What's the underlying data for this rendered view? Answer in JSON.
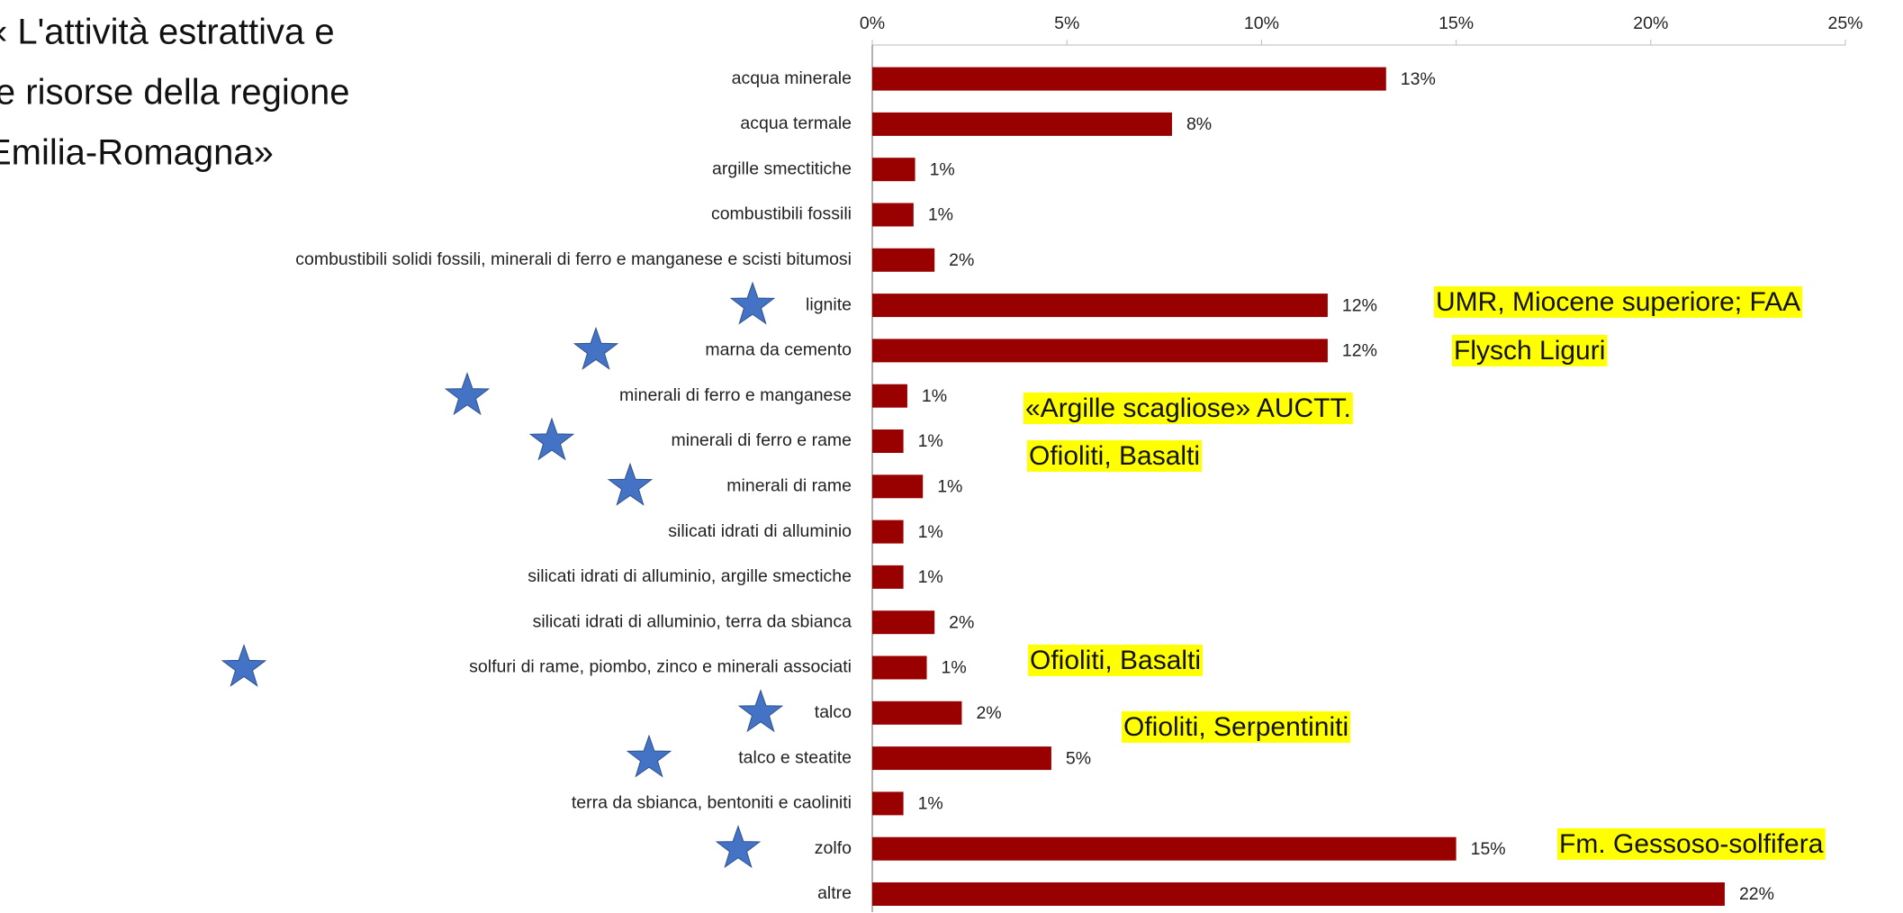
{
  "chart_data": {
    "type": "bar",
    "orientation": "horizontal",
    "title": [
      "« L'attività estrattiva e",
      "le risorse della regione",
      "Emilia-Romagna»"
    ],
    "categories": [
      "acqua minerale",
      "acqua termale",
      "argille smectitiche",
      "combustibili fossili",
      "combustibili solidi fossili, minerali di ferro e manganese e scisti bitumosi",
      "lignite",
      "marna da cemento",
      "minerali di ferro e manganese",
      "minerali di ferro e rame",
      "minerali di rame",
      "silicati idrati di alluminio",
      "silicati idrati di alluminio, argille smectiche",
      "silicati idrati di alluminio, terra da sbianca",
      "solfuri di rame, piombo, zinco e minerali associati",
      "talco",
      "talco e steatite",
      "terra da sbianca, bentoniti e caoliniti",
      "zolfo",
      "altre"
    ],
    "values": [
      13.2,
      7.7,
      1.1,
      1.06,
      1.6,
      11.7,
      11.7,
      0.9,
      0.8,
      1.3,
      0.8,
      0.8,
      1.6,
      1.4,
      2.3,
      4.6,
      0.8,
      15.0,
      21.9
    ],
    "value_labels": [
      "13%",
      "8%",
      "1%",
      "1%",
      "2%",
      "12%",
      "12%",
      "1%",
      "1%",
      "1%",
      "1%",
      "1%",
      "2%",
      "1%",
      "2%",
      "5%",
      "1%",
      "15%",
      "22%"
    ],
    "color": "#990000",
    "xlim": [
      0,
      25
    ],
    "xticks": [
      {
        "value": 0,
        "label": "0%"
      },
      {
        "value": 5,
        "label": "5%"
      },
      {
        "value": 10,
        "label": "10%"
      },
      {
        "value": 15,
        "label": "15%"
      },
      {
        "value": 20,
        "label": "20%"
      },
      {
        "value": 25,
        "label": "25%"
      }
    ],
    "annotations": [
      "UMR, Miocene superiore; FAA",
      "Flysch Liguri",
      "«Argille scagliose» AUCTT.",
      "Ofioliti, Basalti",
      "Ofioliti, Basalti",
      "Ofioliti, Serpentiniti",
      "Fm. Gessoso-solfifera"
    ]
  }
}
